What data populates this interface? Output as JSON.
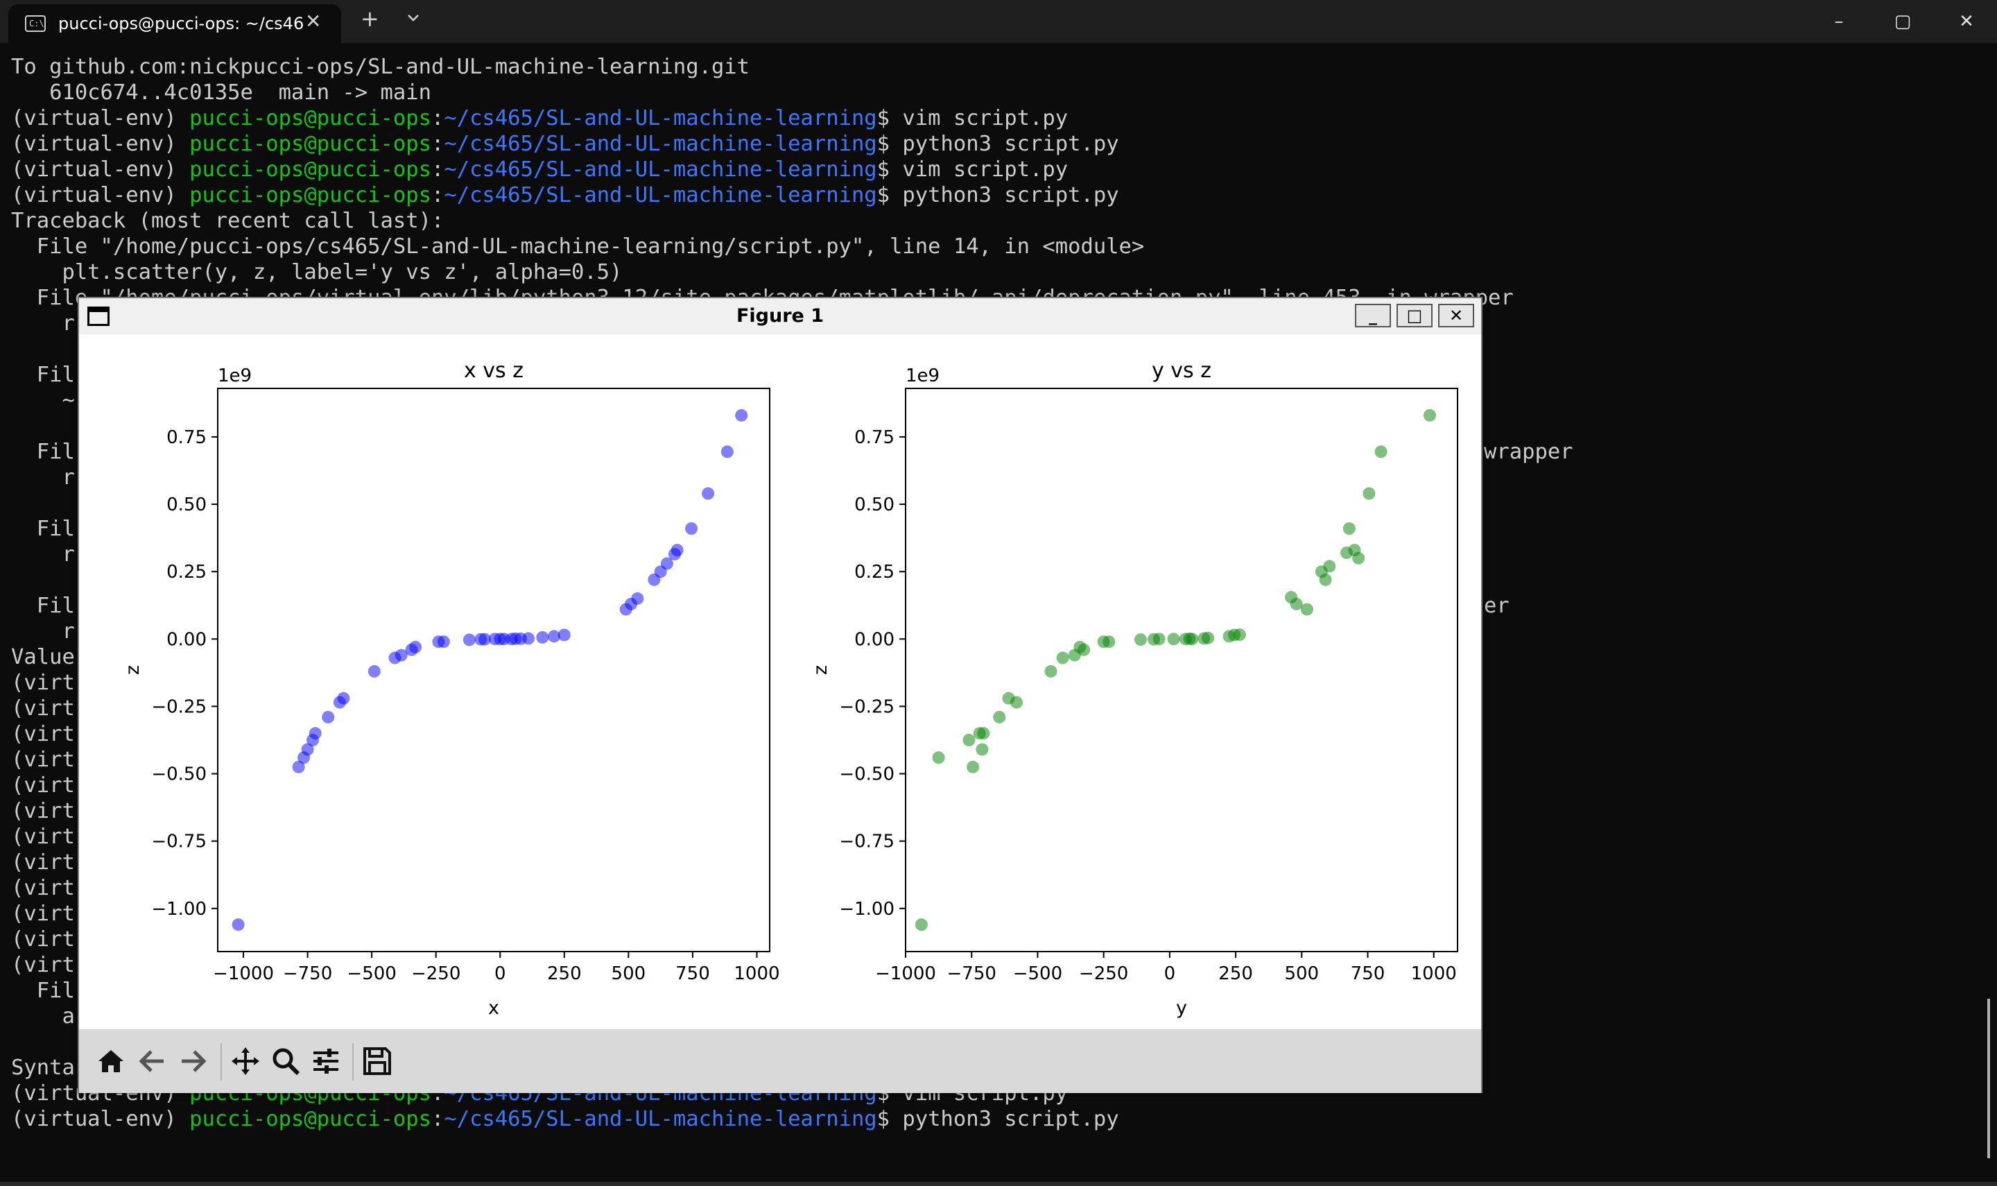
{
  "window": {
    "tab_title": "pucci-ops@pucci-ops: ~/cs46",
    "tab_icon_label": "C:\\",
    "new_tab": "+",
    "controls": [
      "–",
      "▢",
      "✕"
    ]
  },
  "terminal": {
    "lines": [
      {
        "text": "To github.com:nickpucci-ops/SL-and-UL-machine-learning.git"
      },
      {
        "text": "   610c674..4c0135e  main -> main"
      },
      {
        "env": "(virtual-env) ",
        "user": "pucci-ops@pucci-ops",
        "colon": ":",
        "path": "~/cs465/SL-and-UL-machine-learning",
        "cmd": "$ vim script.py"
      },
      {
        "env": "(virtual-env) ",
        "user": "pucci-ops@pucci-ops",
        "colon": ":",
        "path": "~/cs465/SL-and-UL-machine-learning",
        "cmd": "$ python3 script.py"
      },
      {
        "env": "(virtual-env) ",
        "user": "pucci-ops@pucci-ops",
        "colon": ":",
        "path": "~/cs465/SL-and-UL-machine-learning",
        "cmd": "$ vim script.py"
      },
      {
        "env": "(virtual-env) ",
        "user": "pucci-ops@pucci-ops",
        "colon": ":",
        "path": "~/cs465/SL-and-UL-machine-learning",
        "cmd": "$ python3 script.py"
      },
      {
        "text": "Traceback (most recent call last):"
      },
      {
        "text": "  File \"/home/pucci-ops/cs465/SL-and-UL-machine-learning/script.py\", line 14, in <module>"
      },
      {
        "text": "    plt.scatter(y, z, label='y vs z', alpha=0.5)"
      },
      {
        "text": "  File \"/home/pucci-ops/virtual-env/lib/python3.12/site-packages/matplotlib/_api/deprecation.py\", line 453, in wrapper"
      },
      {
        "text": "    r"
      },
      {
        "text": ""
      },
      {
        "text": "  Fil"
      },
      {
        "text": "    ~"
      },
      {
        "text": ""
      },
      {
        "text": "  Fil",
        "tail": "wrapper"
      },
      {
        "text": "    r"
      },
      {
        "text": ""
      },
      {
        "text": "  Fil"
      },
      {
        "text": "    r"
      },
      {
        "text": ""
      },
      {
        "text": "  Fil",
        "tail": "er"
      },
      {
        "text": "    r"
      },
      {
        "text": "Value"
      },
      {
        "text": "(virt"
      },
      {
        "text": "(virt"
      },
      {
        "text": "(virt"
      },
      {
        "text": "(virt"
      },
      {
        "text": "(virt"
      },
      {
        "text": "(virt"
      },
      {
        "text": "(virt"
      },
      {
        "text": "(virt"
      },
      {
        "text": "(virt"
      },
      {
        "text": "(virt"
      },
      {
        "text": "(virt"
      },
      {
        "text": "(virt"
      },
      {
        "text": "  Fil"
      },
      {
        "text": "    a"
      },
      {
        "text": ""
      },
      {
        "text": "Synta"
      },
      {
        "env": "(virtual-env) ",
        "user": "pucci-ops@pucci-ops",
        "colon": ":",
        "path": "~/cs465/SL-and-UL-machine-learning",
        "cmd": "$ vim script.py"
      },
      {
        "env": "(virtual-env) ",
        "user": "pucci-ops@pucci-ops",
        "colon": ":",
        "path": "~/cs465/SL-and-UL-machine-learning",
        "cmd": "$ python3 script.py"
      }
    ]
  },
  "figure": {
    "title": "Figure 1",
    "buttons": {
      "minimize": "_",
      "maximize": "□",
      "close": "✕"
    },
    "toolbar": [
      "home-icon",
      "back-icon",
      "forward-icon",
      "pan-icon",
      "zoom-icon",
      "configure-subplots-icon",
      "save-icon"
    ]
  },
  "chart_data": [
    {
      "type": "scatter",
      "title": "x vs z",
      "xlabel": "x",
      "ylabel": "z",
      "offset_label": "1e9",
      "color": "#0000ff",
      "alpha": 0.5,
      "xlim": [
        -1100,
        1050
      ],
      "ylim": [
        -1.16,
        0.93
      ],
      "xticks": [
        -1000,
        -750,
        -500,
        -250,
        0,
        250,
        500,
        750,
        1000
      ],
      "xtick_labels": [
        "−1000",
        "−750",
        "−500",
        "−250",
        "0",
        "250",
        "500",
        "750",
        "1000"
      ],
      "yticks": [
        0.75,
        0.5,
        0.25,
        0.0,
        -0.25,
        -0.5,
        -0.75,
        -1.0
      ],
      "ytick_labels": [
        "0.75",
        "0.50",
        "0.25",
        "0.00",
        "−0.25",
        "−0.50",
        "−0.75",
        "−1.00"
      ],
      "points": [
        [
          -1020,
          -1.06
        ],
        [
          -785,
          -0.475
        ],
        [
          -765,
          -0.44
        ],
        [
          -750,
          -0.41
        ],
        [
          -730,
          -0.375
        ],
        [
          -720,
          -0.35
        ],
        [
          -670,
          -0.29
        ],
        [
          -625,
          -0.235
        ],
        [
          -610,
          -0.22
        ],
        [
          -490,
          -0.12
        ],
        [
          -410,
          -0.07
        ],
        [
          -385,
          -0.06
        ],
        [
          -345,
          -0.04
        ],
        [
          -330,
          -0.03
        ],
        [
          -240,
          -0.01
        ],
        [
          -220,
          -0.01
        ],
        [
          -120,
          -0.003
        ],
        [
          -75,
          -0.001
        ],
        [
          -60,
          -0.001
        ],
        [
          -20,
          0.0
        ],
        [
          0,
          0.0
        ],
        [
          15,
          0.0
        ],
        [
          45,
          0.0
        ],
        [
          60,
          0.001
        ],
        [
          80,
          0.001
        ],
        [
          110,
          0.002
        ],
        [
          165,
          0.006
        ],
        [
          210,
          0.01
        ],
        [
          250,
          0.015
        ],
        [
          490,
          0.11
        ],
        [
          510,
          0.13
        ],
        [
          535,
          0.15
        ],
        [
          600,
          0.22
        ],
        [
          625,
          0.25
        ],
        [
          650,
          0.28
        ],
        [
          680,
          0.315
        ],
        [
          690,
          0.33
        ],
        [
          745,
          0.41
        ],
        [
          810,
          0.54
        ],
        [
          885,
          0.695
        ],
        [
          940,
          0.83
        ]
      ]
    },
    {
      "type": "scatter",
      "title": "y vs z",
      "xlabel": "y",
      "ylabel": "z",
      "offset_label": "1e9",
      "color": "#008000",
      "alpha": 0.5,
      "xlim": [
        -1000,
        1090
      ],
      "ylim": [
        -1.16,
        0.93
      ],
      "xticks": [
        -1000,
        -750,
        -500,
        -250,
        0,
        250,
        500,
        750,
        1000
      ],
      "xtick_labels": [
        "−1000",
        "−750",
        "−500",
        "−250",
        "0",
        "250",
        "500",
        "750",
        "1000"
      ],
      "yticks": [
        0.75,
        0.5,
        0.25,
        0.0,
        -0.25,
        -0.5,
        -0.75,
        -1.0
      ],
      "ytick_labels": [
        "0.75",
        "0.50",
        "0.25",
        "0.00",
        "−0.25",
        "−0.50",
        "−0.75",
        "−1.00"
      ],
      "points": [
        [
          -940,
          -1.06
        ],
        [
          -875,
          -0.44
        ],
        [
          -760,
          -0.375
        ],
        [
          -745,
          -0.475
        ],
        [
          -720,
          -0.35
        ],
        [
          -705,
          -0.35
        ],
        [
          -710,
          -0.41
        ],
        [
          -645,
          -0.29
        ],
        [
          -610,
          -0.22
        ],
        [
          -580,
          -0.235
        ],
        [
          -450,
          -0.12
        ],
        [
          -405,
          -0.07
        ],
        [
          -360,
          -0.06
        ],
        [
          -340,
          -0.03
        ],
        [
          -325,
          -0.04
        ],
        [
          -250,
          -0.01
        ],
        [
          -230,
          -0.01
        ],
        [
          -110,
          -0.002
        ],
        [
          -60,
          -0.001
        ],
        [
          -40,
          0.0
        ],
        [
          15,
          0.0
        ],
        [
          60,
          0.0
        ],
        [
          75,
          0.001
        ],
        [
          85,
          0.0
        ],
        [
          130,
          0.002
        ],
        [
          145,
          0.004
        ],
        [
          225,
          0.01
        ],
        [
          245,
          0.015
        ],
        [
          265,
          0.016
        ],
        [
          460,
          0.155
        ],
        [
          480,
          0.13
        ],
        [
          520,
          0.11
        ],
        [
          575,
          0.25
        ],
        [
          590,
          0.22
        ],
        [
          605,
          0.27
        ],
        [
          670,
          0.32
        ],
        [
          680,
          0.41
        ],
        [
          700,
          0.33
        ],
        [
          715,
          0.3
        ],
        [
          755,
          0.54
        ],
        [
          800,
          0.695
        ],
        [
          985,
          0.83
        ]
      ]
    }
  ]
}
